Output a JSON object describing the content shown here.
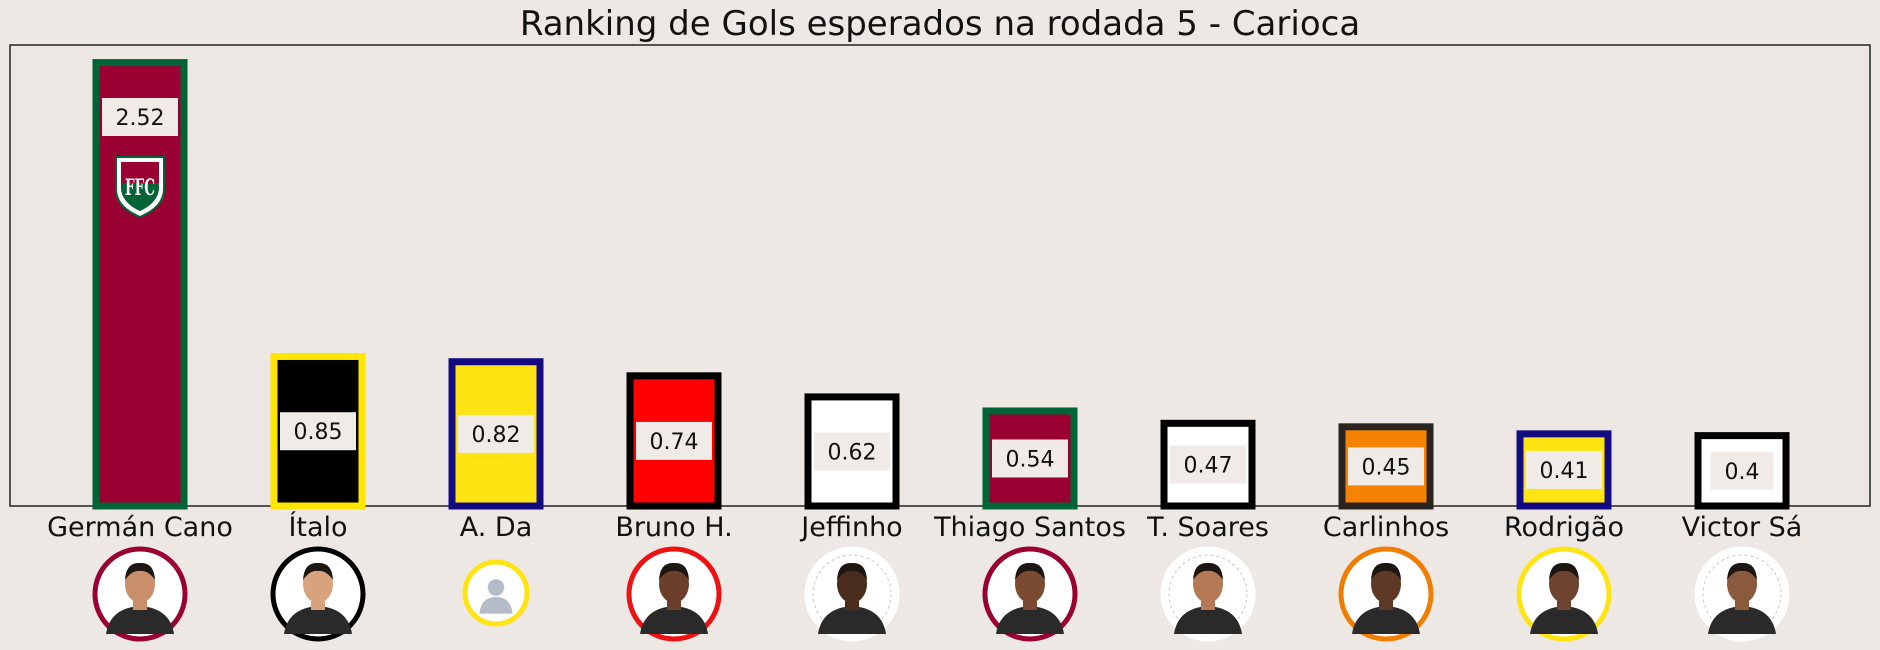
{
  "chart_data": {
    "type": "bar",
    "title": "Ranking de Gols esperados na rodada 5 - Carioca",
    "xlabel": "",
    "ylabel": "",
    "ylim": [
      0,
      2.62
    ],
    "grid": false,
    "categories": [
      "Germán Cano",
      "Ítalo",
      "A. Da",
      "Bruno H.",
      "Jeffinho",
      "Thiago Santos",
      "T. Soares",
      "Carlinhos",
      "Rodrigão",
      "Victor Sá"
    ],
    "values": [
      2.52,
      0.85,
      0.82,
      0.74,
      0.62,
      0.54,
      0.47,
      0.45,
      0.41,
      0.4
    ],
    "data_labels": [
      "2.52",
      "0.85",
      "0.82",
      "0.74",
      "0.62",
      "0.54",
      "0.47",
      "0.45",
      "0.41",
      "0.4"
    ],
    "bars": [
      {
        "fill": "#9b0032",
        "edge": "#006437",
        "photo_ring": "#9b0032"
      },
      {
        "fill": "#000000",
        "edge": "#ffe600",
        "photo_ring": "#000000"
      },
      {
        "fill": "#ffe414",
        "edge": "#140a82",
        "photo_ring": "#ffe414"
      },
      {
        "fill": "#ff0000",
        "edge": "#000000",
        "photo_ring": "#ee1111"
      },
      {
        "fill": "#ffffff",
        "edge": "#000000",
        "photo_ring": "#ffffff"
      },
      {
        "fill": "#9b0032",
        "edge": "#006437",
        "photo_ring": "#9b0032"
      },
      {
        "fill": "#ffffff",
        "edge": "#000000",
        "photo_ring": "#ffffff"
      },
      {
        "fill": "#f58200",
        "edge": "#2a2420",
        "photo_ring": "#f07d00"
      },
      {
        "fill": "#ffe414",
        "edge": "#140a82",
        "photo_ring": "#ffe414"
      },
      {
        "fill": "#ffffff",
        "edge": "#000000",
        "photo_ring": "#ffffff"
      }
    ],
    "first_bar_icon": "fluminense-crest-icon",
    "photo_icon": "player-photo-icon"
  },
  "colors": {
    "background": "#ede8e4",
    "label_box": "#f0ebe6"
  }
}
